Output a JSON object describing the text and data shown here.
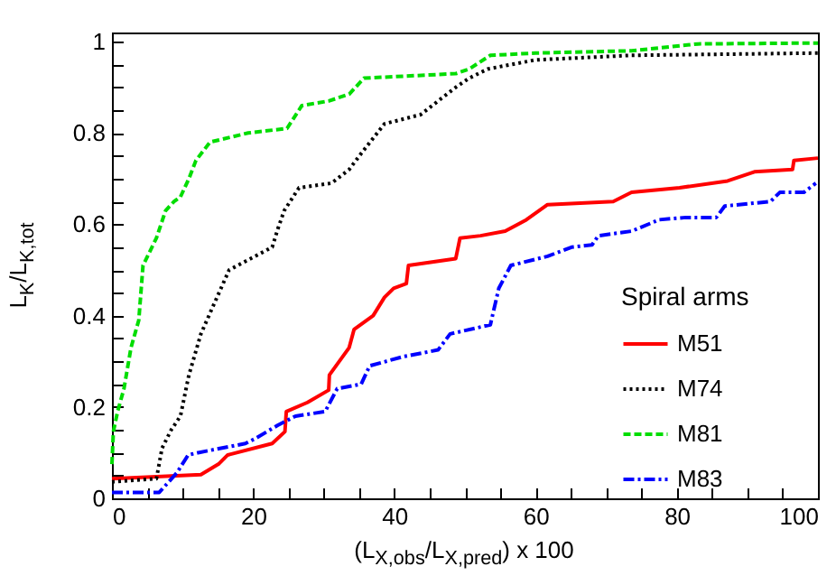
{
  "chart_data": {
    "type": "line",
    "xlabel": "(L$_{X,obs}$/L$_{X,pred}$) x 100",
    "ylabel": "L$_{K}$/L$_{K,tot}$",
    "legend_title": "Spiral arms",
    "legend": "right",
    "xlim": [
      0,
      100
    ],
    "ylim": [
      0,
      1.02
    ],
    "xticks": [
      0,
      {
        "value": 5,
        "label": null
      },
      {
        "value": 10,
        "label": null
      },
      {
        "value": 15,
        "label": null
      },
      20,
      {
        "value": 25,
        "label": null
      },
      {
        "value": 30,
        "label": null
      },
      {
        "value": 35,
        "label": null
      },
      40,
      {
        "value": 45,
        "label": null
      },
      {
        "value": 50,
        "label": null
      },
      {
        "value": 55,
        "label": null
      },
      60,
      {
        "value": 65,
        "label": null
      },
      {
        "value": 70,
        "label": null
      },
      {
        "value": 75,
        "label": null
      },
      80,
      {
        "value": 85,
        "label": null
      },
      {
        "value": 90,
        "label": null
      },
      {
        "value": 95,
        "label": null
      },
      100
    ],
    "yticks": [
      0,
      {
        "value": 0.05,
        "label": null
      },
      {
        "value": 0.1,
        "label": null
      },
      {
        "value": 0.15,
        "label": null
      },
      0.2,
      {
        "value": 0.25,
        "label": null
      },
      {
        "value": 0.3,
        "label": null
      },
      {
        "value": 0.35,
        "label": null
      },
      0.4,
      {
        "value": 0.45,
        "label": null
      },
      {
        "value": 0.5,
        "label": null
      },
      {
        "value": 0.55,
        "label": null
      },
      0.6,
      {
        "value": 0.65,
        "label": null
      },
      {
        "value": 0.7,
        "label": null
      },
      {
        "value": 0.75,
        "label": null
      },
      0.8,
      {
        "value": 0.85,
        "label": null
      },
      {
        "value": 0.9,
        "label": null
      },
      {
        "value": 0.95,
        "label": null
      },
      1
    ],
    "series": [
      {
        "name": "M51",
        "color": "#ff0000",
        "line_style": "solid",
        "x": [
          0,
          12.6,
          15.1,
          16.4,
          22.7,
          24.5,
          24.7,
          27.7,
          30.7,
          30.8,
          33.6,
          34.3,
          37,
          38.6,
          39.9,
          41.7,
          42,
          48.7,
          49.3,
          52.2,
          55.7,
          58.7,
          61.7,
          71,
          73.6,
          80.4,
          87.2,
          91,
          96.4,
          96.6,
          100
        ],
        "values": [
          0.043,
          0.052,
          0.075,
          0.095,
          0.12,
          0.146,
          0.19,
          0.21,
          0.237,
          0.27,
          0.33,
          0.37,
          0.4,
          0.44,
          0.46,
          0.47,
          0.51,
          0.525,
          0.57,
          0.575,
          0.585,
          0.61,
          0.643,
          0.65,
          0.67,
          0.68,
          0.695,
          0.715,
          0.72,
          0.74,
          0.745
        ]
      },
      {
        "name": "M74",
        "color": "#000000",
        "line_style": "dotted",
        "x": [
          0,
          6.3,
          7.1,
          8.4,
          9.7,
          10.9,
          12.6,
          14.3,
          16.6,
          22.7,
          23.5,
          24.4,
          26.5,
          31.1,
          33.6,
          35.3,
          38.6,
          43.7,
          48.7,
          50.6,
          53.2,
          60,
          73.6,
          100
        ],
        "values": [
          0.036,
          0.043,
          0.11,
          0.15,
          0.18,
          0.27,
          0.36,
          0.42,
          0.5,
          0.55,
          0.59,
          0.63,
          0.68,
          0.69,
          0.72,
          0.755,
          0.82,
          0.84,
          0.9,
          0.92,
          0.94,
          0.96,
          0.97,
          0.975
        ]
      },
      {
        "name": "M81",
        "color": "#00dd00",
        "line_style": "dashed",
        "x": [
          0,
          0.2,
          0.8,
          1.7,
          2.7,
          3.8,
          4.4,
          6.3,
          7.6,
          8.8,
          9.7,
          10.9,
          11.9,
          13.9,
          19.3,
          24.8,
          26.9,
          30.7,
          33.6,
          35.7,
          48.7,
          50.6,
          53.6,
          60,
          73.6,
          83,
          100
        ],
        "values": [
          0.075,
          0.146,
          0.19,
          0.24,
          0.33,
          0.39,
          0.51,
          0.57,
          0.63,
          0.65,
          0.66,
          0.7,
          0.74,
          0.78,
          0.8,
          0.81,
          0.86,
          0.87,
          0.885,
          0.92,
          0.93,
          0.94,
          0.97,
          0.975,
          0.98,
          0.995,
          0.997
        ]
      },
      {
        "name": "M83",
        "color": "#0000ff",
        "line_style": "dashdot",
        "x": [
          0,
          6.7,
          9.2,
          10.8,
          12.2,
          18.9,
          20.2,
          23.5,
          26,
          30.2,
          31.9,
          35.3,
          36.5,
          41.2,
          46.2,
          47.9,
          53.6,
          54.8,
          56.5,
          61.7,
          65.1,
          68,
          68.9,
          73.6,
          77.5,
          81.3,
          85.6,
          86.8,
          93.3,
          94.6,
          98,
          99.7
        ],
        "values": [
          0.013,
          0.013,
          0.056,
          0.095,
          0.1,
          0.12,
          0.13,
          0.16,
          0.18,
          0.19,
          0.24,
          0.25,
          0.29,
          0.31,
          0.325,
          0.36,
          0.38,
          0.46,
          0.51,
          0.53,
          0.55,
          0.555,
          0.575,
          0.585,
          0.61,
          0.615,
          0.615,
          0.64,
          0.65,
          0.67,
          0.67,
          0.69
        ]
      }
    ]
  }
}
